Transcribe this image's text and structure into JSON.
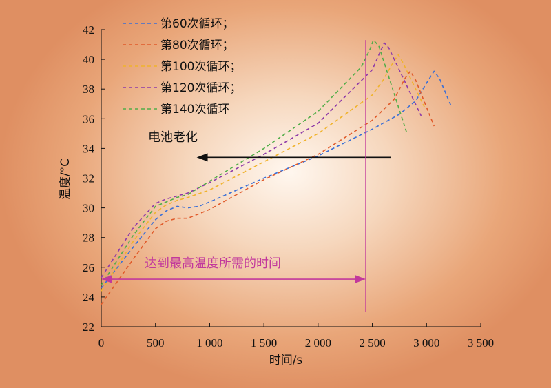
{
  "chart_data": {
    "type": "line",
    "xlabel": "时间/s",
    "ylabel": "温度/°C",
    "xlim": [
      0,
      3500
    ],
    "ylim": [
      22,
      42
    ],
    "x_ticks": [
      0,
      500,
      1000,
      1500,
      2000,
      2500,
      3000,
      3500
    ],
    "x_tick_labels": [
      "0",
      "500",
      "1 000",
      "1 500",
      "2 000",
      "2 500",
      "3 000",
      "3 500"
    ],
    "y_ticks": [
      22,
      24,
      26,
      28,
      30,
      32,
      34,
      36,
      38,
      40,
      42
    ],
    "y_tick_labels": [
      "22",
      "24",
      "26",
      "28",
      "30",
      "32",
      "34",
      "36",
      "38",
      "40",
      "42"
    ],
    "grid": false,
    "legend_position": "top-left",
    "line_style": "dashed",
    "series": [
      {
        "name": "第60次循环；",
        "color": "#3a6fd6",
        "points": [
          [
            0,
            24.6
          ],
          [
            300,
            27.4
          ],
          [
            500,
            29.2
          ],
          [
            600,
            29.8
          ],
          [
            700,
            30.1
          ],
          [
            800,
            30.0
          ],
          [
            900,
            30.1
          ],
          [
            1000,
            30.4
          ],
          [
            1500,
            32.0
          ],
          [
            2000,
            33.5
          ],
          [
            2500,
            35.3
          ],
          [
            2750,
            36.3
          ],
          [
            2900,
            37.2
          ],
          [
            3000,
            38.4
          ],
          [
            3070,
            39.2
          ],
          [
            3120,
            38.7
          ],
          [
            3230,
            36.8
          ]
        ]
      },
      {
        "name": "第80次循环；",
        "color": "#e05a2a",
        "points": [
          [
            0,
            23.5
          ],
          [
            300,
            26.6
          ],
          [
            500,
            28.6
          ],
          [
            600,
            29.1
          ],
          [
            700,
            29.3
          ],
          [
            800,
            29.3
          ],
          [
            1000,
            29.9
          ],
          [
            1500,
            31.9
          ],
          [
            2000,
            33.6
          ],
          [
            2500,
            35.9
          ],
          [
            2700,
            37.3
          ],
          [
            2800,
            38.7
          ],
          [
            2850,
            39.2
          ],
          [
            2900,
            38.6
          ],
          [
            3070,
            35.5
          ]
        ]
      },
      {
        "name": "第100次循环；",
        "color": "#f0b32c",
        "points": [
          [
            0,
            24.4
          ],
          [
            300,
            27.8
          ],
          [
            500,
            29.7
          ],
          [
            600,
            30.2
          ],
          [
            700,
            30.5
          ],
          [
            800,
            30.7
          ],
          [
            1000,
            31.2
          ],
          [
            1500,
            33.1
          ],
          [
            2000,
            35.0
          ],
          [
            2500,
            37.6
          ],
          [
            2600,
            38.6
          ],
          [
            2700,
            39.9
          ],
          [
            2740,
            40.3
          ],
          [
            2780,
            39.8
          ],
          [
            2980,
            36.8
          ]
        ]
      },
      {
        "name": "第120次循环；",
        "color": "#8e3aa8",
        "points": [
          [
            0,
            25.3
          ],
          [
            300,
            28.7
          ],
          [
            500,
            30.3
          ],
          [
            600,
            30.6
          ],
          [
            700,
            30.8
          ],
          [
            800,
            31.0
          ],
          [
            1000,
            31.7
          ],
          [
            1500,
            33.6
          ],
          [
            2000,
            35.7
          ],
          [
            2500,
            39.3
          ],
          [
            2560,
            40.3
          ],
          [
            2610,
            41.1
          ],
          [
            2650,
            40.8
          ],
          [
            2950,
            36.2
          ]
        ]
      },
      {
        "name": "第140次循环",
        "color": "#52ad48",
        "points": [
          [
            0,
            24.8
          ],
          [
            300,
            28.2
          ],
          [
            500,
            30.1
          ],
          [
            600,
            30.4
          ],
          [
            700,
            30.7
          ],
          [
            800,
            30.9
          ],
          [
            1000,
            31.8
          ],
          [
            1500,
            34.0
          ],
          [
            2000,
            36.5
          ],
          [
            2400,
            39.5
          ],
          [
            2480,
            40.7
          ],
          [
            2510,
            41.3
          ],
          [
            2560,
            40.9
          ],
          [
            2820,
            35.0
          ]
        ]
      }
    ],
    "annotations": {
      "aging_label": "电池老化",
      "aging_arrow": {
        "from_x": 2670,
        "to_x": 880,
        "y": 33.4,
        "color": "#111111"
      },
      "time_label": "达到最高温度所需的时间",
      "time_arrow": {
        "from_x": 0,
        "to_x": 2440,
        "y": 25.2,
        "color": "#c2399c"
      },
      "vline": {
        "x": 2440,
        "y_from": 23.0,
        "y_to": 41.3,
        "color": "#c2399c"
      }
    }
  }
}
